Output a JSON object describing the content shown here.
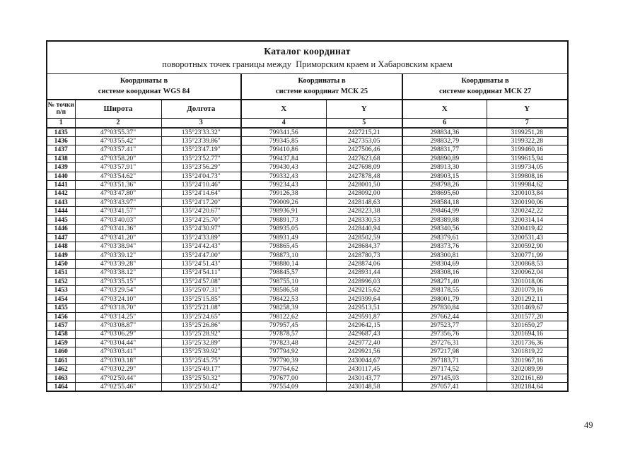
{
  "page": {
    "number": "49"
  },
  "table": {
    "title": "Каталог координат",
    "subtitle": "поворотных точек границы между  Приморским краем и Хабаровским краем",
    "groups": [
      {
        "line1": "Координаты в",
        "line2": "системе координат WGS 84"
      },
      {
        "line1": "Координаты в",
        "line2": "системе координат МСК 25"
      },
      {
        "line1": "Координаты в",
        "line2": "системе координат МСК 27"
      }
    ],
    "point_col_header": {
      "line1": "№ точки",
      "line2": "п/п"
    },
    "headers": [
      "Широта",
      "Долгота",
      "X",
      "Y",
      "X",
      "Y"
    ],
    "column_numbers": [
      "1",
      "2",
      "3",
      "4",
      "5",
      "6",
      "7"
    ],
    "rows": [
      [
        "1435",
        "47°03'55.37\"",
        "135°23'33.32\"",
        "799341,56",
        "2427215,21",
        "298834,36",
        "3199251,28"
      ],
      [
        "1436",
        "47°03'55.42\"",
        "135°23'39.86\"",
        "799345,85",
        "2427353,05",
        "298832,79",
        "3199322,28"
      ],
      [
        "1437",
        "47°03'57.41\"",
        "135°23'47.19\"",
        "799410,86",
        "2427506,46",
        "298831,77",
        "3199460,16"
      ],
      [
        "1438",
        "47°03'58.20\"",
        "135°23'52.77\"",
        "799437,84",
        "2427623,68",
        "298890,89",
        "3199615,94"
      ],
      [
        "1439",
        "47°03'57.91\"",
        "135°23'56.29\"",
        "799430,43",
        "2427698,09",
        "298913,30",
        "3199734,05"
      ],
      [
        "1440",
        "47°03'54.62\"",
        "135°24'04.73\"",
        "799332,43",
        "2427878,48",
        "298903,15",
        "3199808,16"
      ],
      [
        "1441",
        "47°03'51.36\"",
        "135°24'10.46\"",
        "799234,43",
        "2428001,50",
        "298798,26",
        "3199984,62"
      ],
      [
        "1442",
        "47°03'47.80\"",
        "135°24'14.64\"",
        "799126,38",
        "2428092,00",
        "298695,60",
        "3200103,84"
      ],
      [
        "1443",
        "47°03'43.97\"",
        "135°24'17.20\"",
        "799009,26",
        "2428148,63",
        "298584,18",
        "3200190,06"
      ],
      [
        "1444",
        "47°03'41.57\"",
        "135°24'20.67\"",
        "798936,91",
        "2428223,38",
        "298464,99",
        "3200242,22"
      ],
      [
        "1445",
        "47°03'40.03\"",
        "135°24'25.70\"",
        "798891,73",
        "2428330,53",
        "298389,88",
        "3200314,14"
      ],
      [
        "1446",
        "47°03'41.36\"",
        "135°24'30.97\"",
        "798935,05",
        "2428440,94",
        "298340,56",
        "3200419,42"
      ],
      [
        "1447",
        "47°03'41.20\"",
        "135°24'33.89\"",
        "798931,49",
        "2428502,59",
        "298379,61",
        "3200531,43"
      ],
      [
        "1448",
        "47°03'38.94\"",
        "135°24'42.43\"",
        "798865,45",
        "2428684,37",
        "298373,76",
        "3200592,90"
      ],
      [
        "1449",
        "47°03'39.12\"",
        "135°24'47.00\"",
        "798873,10",
        "2428780,73",
        "298300,81",
        "3200771,99"
      ],
      [
        "1450",
        "47°03'39.28\"",
        "135°24'51.43\"",
        "798880,14",
        "2428874,06",
        "298304,69",
        "3200868,53"
      ],
      [
        "1451",
        "47°03'38.12\"",
        "135°24'54.11\"",
        "798845,57",
        "2428931,44",
        "298308,16",
        "3200962,04"
      ],
      [
        "1452",
        "47°03'35.15\"",
        "135°24'57.08\"",
        "798755,10",
        "2428996,03",
        "298271,40",
        "3201018,06"
      ],
      [
        "1453",
        "47°03'29.54\"",
        "135°25'07.31\"",
        "798586,58",
        "2429215,62",
        "298178,55",
        "3201079,16"
      ],
      [
        "1454",
        "47°03'24.10\"",
        "135°25'15.85\"",
        "798422,53",
        "2429399,64",
        "298001,79",
        "3201292,11"
      ],
      [
        "1455",
        "47°03'18.70\"",
        "135°25'21.08\"",
        "798258,39",
        "2429513,51",
        "297830,84",
        "3201469,67"
      ],
      [
        "1456",
        "47°03'14.25\"",
        "135°25'24.65\"",
        "798122,62",
        "2429591,87",
        "297662,44",
        "3201577,20"
      ],
      [
        "1457",
        "47°03'08.87\"",
        "135°25'26.86\"",
        "797957,45",
        "2429642,15",
        "297523,77",
        "3201650,27"
      ],
      [
        "1458",
        "47°03'06.29\"",
        "135°25'28.92\"",
        "797878,57",
        "2429687,43",
        "297356,76",
        "3201694,16"
      ],
      [
        "1459",
        "47°03'04.44\"",
        "135°25'32.89\"",
        "797823,48",
        "2429772,40",
        "297276,31",
        "3201736,36"
      ],
      [
        "1460",
        "47°03'03.41\"",
        "135°25'39.92\"",
        "797794,92",
        "2429921,56",
        "297217,98",
        "3201819,22"
      ],
      [
        "1461",
        "47°03'03.18\"",
        "135°25'45.75\"",
        "797790,39",
        "2430044,67",
        "297183,71",
        "3201967,16"
      ],
      [
        "1462",
        "47°03'02.29\"",
        "135°25'49.17\"",
        "797764,62",
        "2430117,45",
        "297174,52",
        "3202089,99"
      ],
      [
        "1463",
        "47°02'59.44\"",
        "135°25'50.32\"",
        "797677,00",
        "2430143,77",
        "297145,93",
        "3202161,69"
      ],
      [
        "1464",
        "47°02'55.46\"",
        "135°25'50.42\"",
        "797554,09",
        "2430148,58",
        "297057,41",
        "3202184,64"
      ]
    ]
  }
}
